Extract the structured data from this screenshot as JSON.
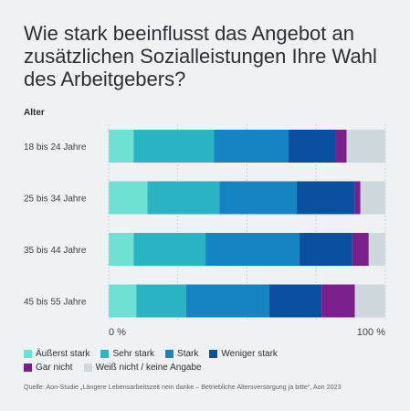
{
  "title": "Wie stark beeinflusst das Angebot an zusätzlichen Sozialleistungen Ihre Wahl des Arbeitgebers?",
  "source": "Quelle: Aon-Studie „Längere Lebensarbeitszeit nein danke – Betriebliche Altersversorgung ja bitte“, Aon 2023",
  "chart_data": {
    "type": "bar",
    "orientation": "horizontal",
    "stacked": true,
    "group_label": "Alter",
    "categories": [
      "18 bis 24 Jahre",
      "25 bis 34 Jahre",
      "35 bis 44 Jahre",
      "45 bis 55 Jahre"
    ],
    "xlim": [
      0,
      100
    ],
    "x_ticks": [
      "0 %",
      "100 %"
    ],
    "grid": true,
    "legend_position": "bottom",
    "series": [
      {
        "name": "Äußerst stark",
        "color": "#6fe0d4",
        "values": [
          9,
          14,
          9,
          10
        ]
      },
      {
        "name": "Sehr stark",
        "color": "#2bb5c4",
        "values": [
          29,
          26,
          26,
          18
        ]
      },
      {
        "name": "Stark",
        "color": "#1485c2",
        "values": [
          27,
          28,
          34,
          30
        ]
      },
      {
        "name": "Weniger stark",
        "color": "#0b4fa0",
        "values": [
          17,
          21,
          19,
          19
        ]
      },
      {
        "name": "Gar nicht",
        "color": "#7b1f8a",
        "values": [
          4,
          2,
          6,
          12
        ]
      },
      {
        "name": "Weiß nicht / keine Angabe",
        "color": "#cfd8dd",
        "values": [
          14,
          9,
          6,
          11
        ]
      }
    ]
  }
}
